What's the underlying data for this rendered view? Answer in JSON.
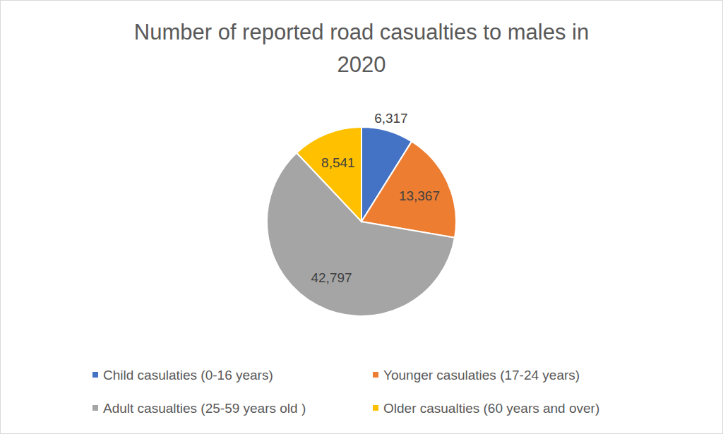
{
  "chart_data": {
    "type": "pie",
    "title": "Number of reported road casualties to males in 2020",
    "categories": [
      "Child casulaties (0-16 years)",
      "Younger casulaties (17-24 years)",
      "Adult casualties (25-59 years old )",
      "Older casualties (60 years and over)"
    ],
    "values": [
      6317,
      13367,
      42797,
      8541
    ],
    "value_labels": [
      "6,317",
      "13,367",
      "42,797",
      "8,541"
    ],
    "colors": [
      "#4472c4",
      "#ed7d31",
      "#a5a5a5",
      "#ffc000"
    ],
    "data_labels": true,
    "legend": "bottom"
  }
}
